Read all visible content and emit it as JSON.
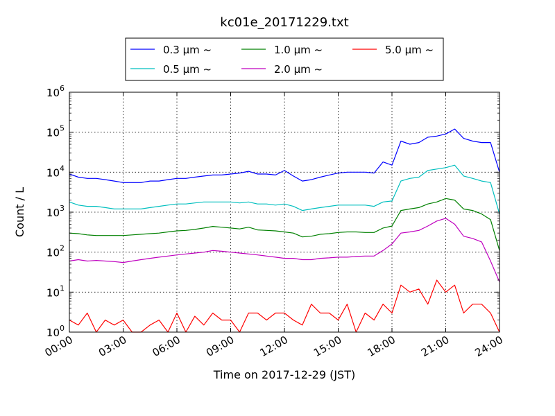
{
  "chart_data": {
    "type": "line",
    "title": "kc01e_20171229.txt",
    "xlabel": "Time on 2017-12-29 (JST)",
    "ylabel": "Count / L",
    "y_scale": "log",
    "ylim": [
      1,
      1000000
    ],
    "xlim": [
      "2017-12-29 00:00",
      "2017-12-30 00:00"
    ],
    "x_ticks": [
      "00:00",
      "03:00",
      "06:00",
      "09:00",
      "12:00",
      "15:00",
      "18:00",
      "21:00",
      "24:00"
    ],
    "y_ticks": [
      {
        "base": "10",
        "exp": "0",
        "value": 1
      },
      {
        "base": "10",
        "exp": "1",
        "value": 10
      },
      {
        "base": "10",
        "exp": "2",
        "value": 100
      },
      {
        "base": "10",
        "exp": "3",
        "value": 1000
      },
      {
        "base": "10",
        "exp": "4",
        "value": 10000
      },
      {
        "base": "10",
        "exp": "5",
        "value": 100000
      },
      {
        "base": "10",
        "exp": "6",
        "value": 1000000
      }
    ],
    "grid": true,
    "legend_position": "top-center",
    "x": [
      "00:00",
      "00:30",
      "01:00",
      "01:30",
      "02:00",
      "02:30",
      "03:00",
      "03:30",
      "04:00",
      "04:30",
      "05:00",
      "05:30",
      "06:00",
      "06:30",
      "07:00",
      "07:30",
      "08:00",
      "08:30",
      "09:00",
      "09:30",
      "10:00",
      "10:30",
      "11:00",
      "11:30",
      "12:00",
      "12:30",
      "13:00",
      "13:30",
      "14:00",
      "14:30",
      "15:00",
      "15:30",
      "16:00",
      "16:30",
      "17:00",
      "17:30",
      "18:00",
      "18:30",
      "19:00",
      "19:30",
      "20:00",
      "20:30",
      "21:00",
      "21:30",
      "22:00",
      "22:30",
      "23:00",
      "23:30",
      "24:00"
    ],
    "series": [
      {
        "name": "0.3 μm ~",
        "color": "#0000ff",
        "values": [
          9000,
          7500,
          7000,
          7000,
          6500,
          6000,
          5500,
          5500,
          5500,
          6000,
          6000,
          6500,
          7000,
          7000,
          7500,
          8000,
          8500,
          8500,
          9000,
          9500,
          10500,
          9000,
          9000,
          8500,
          11000,
          8000,
          6000,
          6500,
          7500,
          8500,
          9500,
          10000,
          10000,
          10000,
          9500,
          18000,
          15000,
          60000,
          50000,
          55000,
          75000,
          80000,
          90000,
          120000,
          70000,
          60000,
          55000,
          55000,
          10000
        ]
      },
      {
        "name": "0.5 μm ~",
        "color": "#00bfbf",
        "values": [
          1800,
          1500,
          1400,
          1400,
          1300,
          1200,
          1200,
          1200,
          1200,
          1300,
          1400,
          1500,
          1600,
          1600,
          1700,
          1800,
          1800,
          1800,
          1800,
          1700,
          1800,
          1600,
          1600,
          1500,
          1600,
          1400,
          1100,
          1200,
          1300,
          1400,
          1500,
          1500,
          1500,
          1500,
          1400,
          1800,
          1900,
          6000,
          7000,
          7500,
          11000,
          12000,
          13000,
          15000,
          8000,
          7000,
          6000,
          5500,
          900
        ]
      },
      {
        "name": "1.0 μm ~",
        "color": "#008000",
        "values": [
          300,
          290,
          270,
          260,
          260,
          260,
          260,
          270,
          280,
          290,
          300,
          320,
          340,
          350,
          370,
          400,
          440,
          420,
          400,
          380,
          420,
          360,
          350,
          340,
          320,
          300,
          240,
          250,
          280,
          290,
          310,
          320,
          320,
          310,
          310,
          400,
          450,
          1100,
          1200,
          1300,
          1600,
          1800,
          2200,
          2000,
          1200,
          1100,
          900,
          650,
          110
        ]
      },
      {
        "name": "2.0 μm ~",
        "color": "#bf00bf",
        "values": [
          60,
          65,
          60,
          62,
          60,
          58,
          55,
          60,
          65,
          70,
          75,
          80,
          85,
          90,
          95,
          100,
          110,
          105,
          100,
          95,
          90,
          85,
          80,
          75,
          70,
          70,
          65,
          65,
          70,
          72,
          75,
          75,
          78,
          80,
          80,
          110,
          160,
          300,
          320,
          350,
          450,
          600,
          700,
          500,
          250,
          220,
          180,
          60,
          18
        ]
      },
      {
        "name": "5.0 μm ~",
        "color": "#ff0000",
        "values": [
          2,
          1.5,
          3,
          1,
          2,
          1.5,
          2,
          1,
          1,
          1.5,
          2,
          1,
          3,
          1,
          2.5,
          1.5,
          3,
          2,
          2,
          1,
          3,
          3,
          2,
          3,
          3,
          2,
          1.5,
          5,
          3,
          3,
          2,
          5,
          1,
          3,
          2,
          5,
          3,
          15,
          10,
          12,
          5,
          20,
          10,
          15,
          3,
          5,
          5,
          3,
          1
        ]
      }
    ]
  }
}
